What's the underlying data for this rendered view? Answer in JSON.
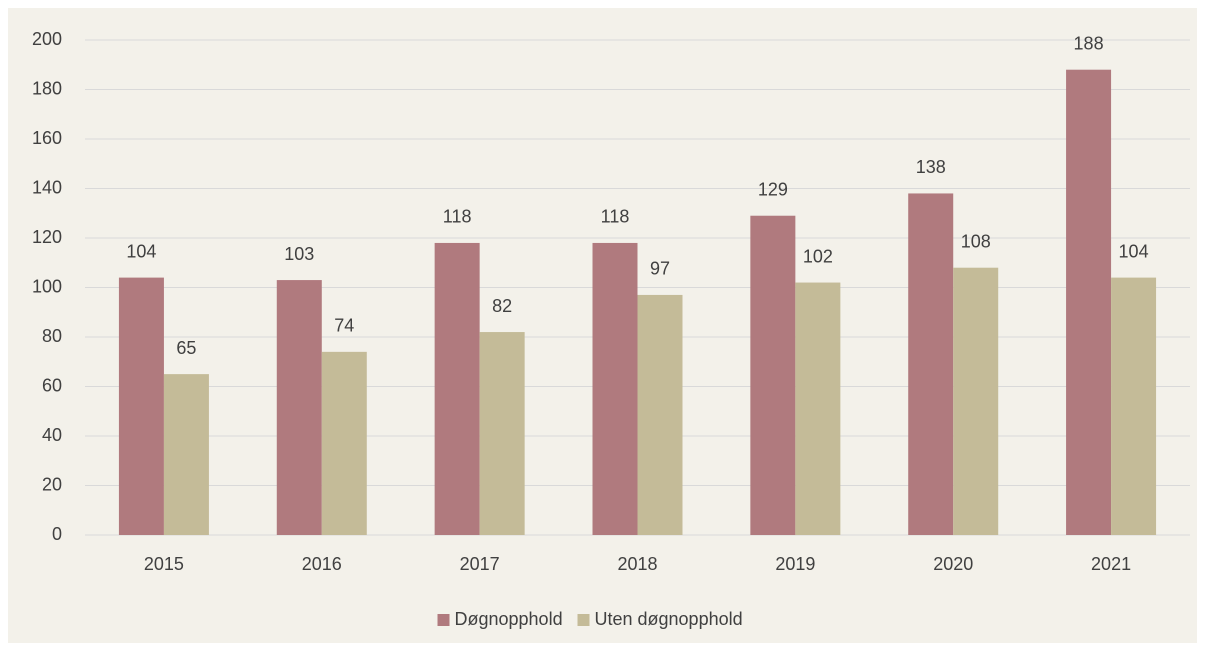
{
  "chart_data": {
    "type": "bar",
    "categories": [
      "2015",
      "2016",
      "2017",
      "2018",
      "2019",
      "2020",
      "2021"
    ],
    "series": [
      {
        "name": "Døgnopphold",
        "color": "#b07a7e",
        "values": [
          104,
          103,
          118,
          118,
          129,
          138,
          188
        ]
      },
      {
        "name": "Uten døgnopphold",
        "color": "#c4bb98",
        "values": [
          65,
          74,
          82,
          97,
          102,
          108,
          104
        ]
      }
    ],
    "ylim": [
      0,
      200
    ],
    "yticks": [
      0,
      20,
      40,
      60,
      80,
      100,
      120,
      140,
      160,
      180,
      200
    ],
    "grid": true,
    "legend": "bottom",
    "data_labels": true
  }
}
